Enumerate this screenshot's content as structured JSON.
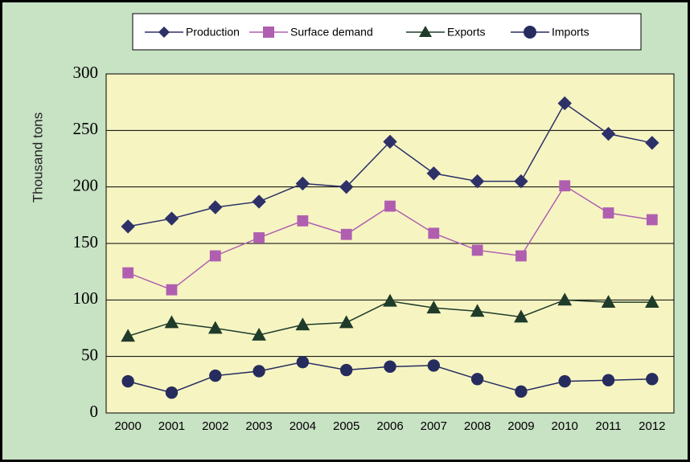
{
  "chart_data": {
    "type": "line",
    "y_label": "Thousand tons",
    "categories": [
      "2000",
      "2001",
      "2002",
      "2003",
      "2004",
      "2005",
      "2006",
      "2007",
      "2008",
      "2009",
      "2010",
      "2011",
      "2012"
    ],
    "series": [
      {
        "name": "Production",
        "color": "#2e3168",
        "marker": "diamond",
        "values": [
          165,
          172,
          182,
          187,
          203,
          200,
          240,
          212,
          205,
          205,
          274,
          247,
          239
        ]
      },
      {
        "name": "Surface demand",
        "color": "#b05fb0",
        "marker": "square",
        "values": [
          124,
          109,
          139,
          155,
          170,
          158,
          183,
          159,
          144,
          139,
          201,
          177,
          171
        ]
      },
      {
        "name": "Exports",
        "color": "#1f3b2a",
        "marker": "triangle",
        "values": [
          68,
          80,
          75,
          69,
          78,
          80,
          99,
          93,
          90,
          85,
          100,
          98,
          98
        ]
      },
      {
        "name": "Imports",
        "color": "#262c5e",
        "marker": "circle",
        "values": [
          28,
          18,
          33,
          37,
          45,
          38,
          41,
          42,
          30,
          19,
          28,
          29,
          30
        ]
      }
    ],
    "ylim": [
      0,
      300
    ],
    "yticks": [
      0,
      50,
      100,
      150,
      200,
      250,
      300
    ],
    "grid": true
  }
}
